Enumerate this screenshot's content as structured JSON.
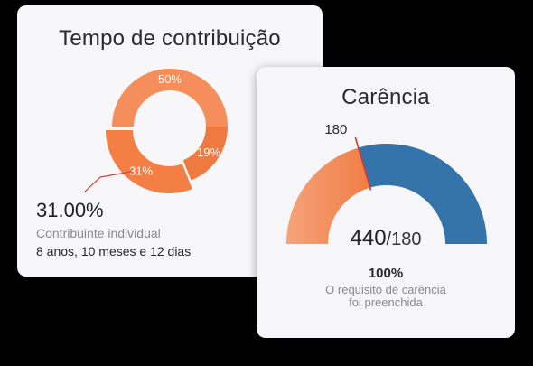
{
  "contribution_card": {
    "title": "Tempo de contribuição",
    "highlight_percent": "31.00%",
    "highlight_label": "Contribuinte individual",
    "duration": "8 anos, 10 meses e 12 dias",
    "chart_data": {
      "type": "pie",
      "variant": "donut",
      "slices": [
        {
          "label": "50%",
          "value": 50,
          "color": "#f58e5b"
        },
        {
          "label": "19%",
          "value": 19,
          "color": "#ef7a3f"
        },
        {
          "label": "31%",
          "value": 31,
          "color": "#f37f45",
          "highlighted": true
        }
      ]
    }
  },
  "carencia_card": {
    "title": "Carência",
    "marker_label": "180",
    "current_value": "440",
    "total_label": "/180",
    "percent_label": "100%",
    "message_line1": "O requisito de carência",
    "message_line2": "foi preenchida",
    "gauge": {
      "min": 0,
      "max": 440,
      "marker": 180,
      "value": 440,
      "colors": {
        "fulfilled_orange_start": "#f6a27a",
        "fulfilled_orange_end": "#f07e44",
        "blue": "#3474ab",
        "marker": "#d6382d"
      }
    }
  }
}
